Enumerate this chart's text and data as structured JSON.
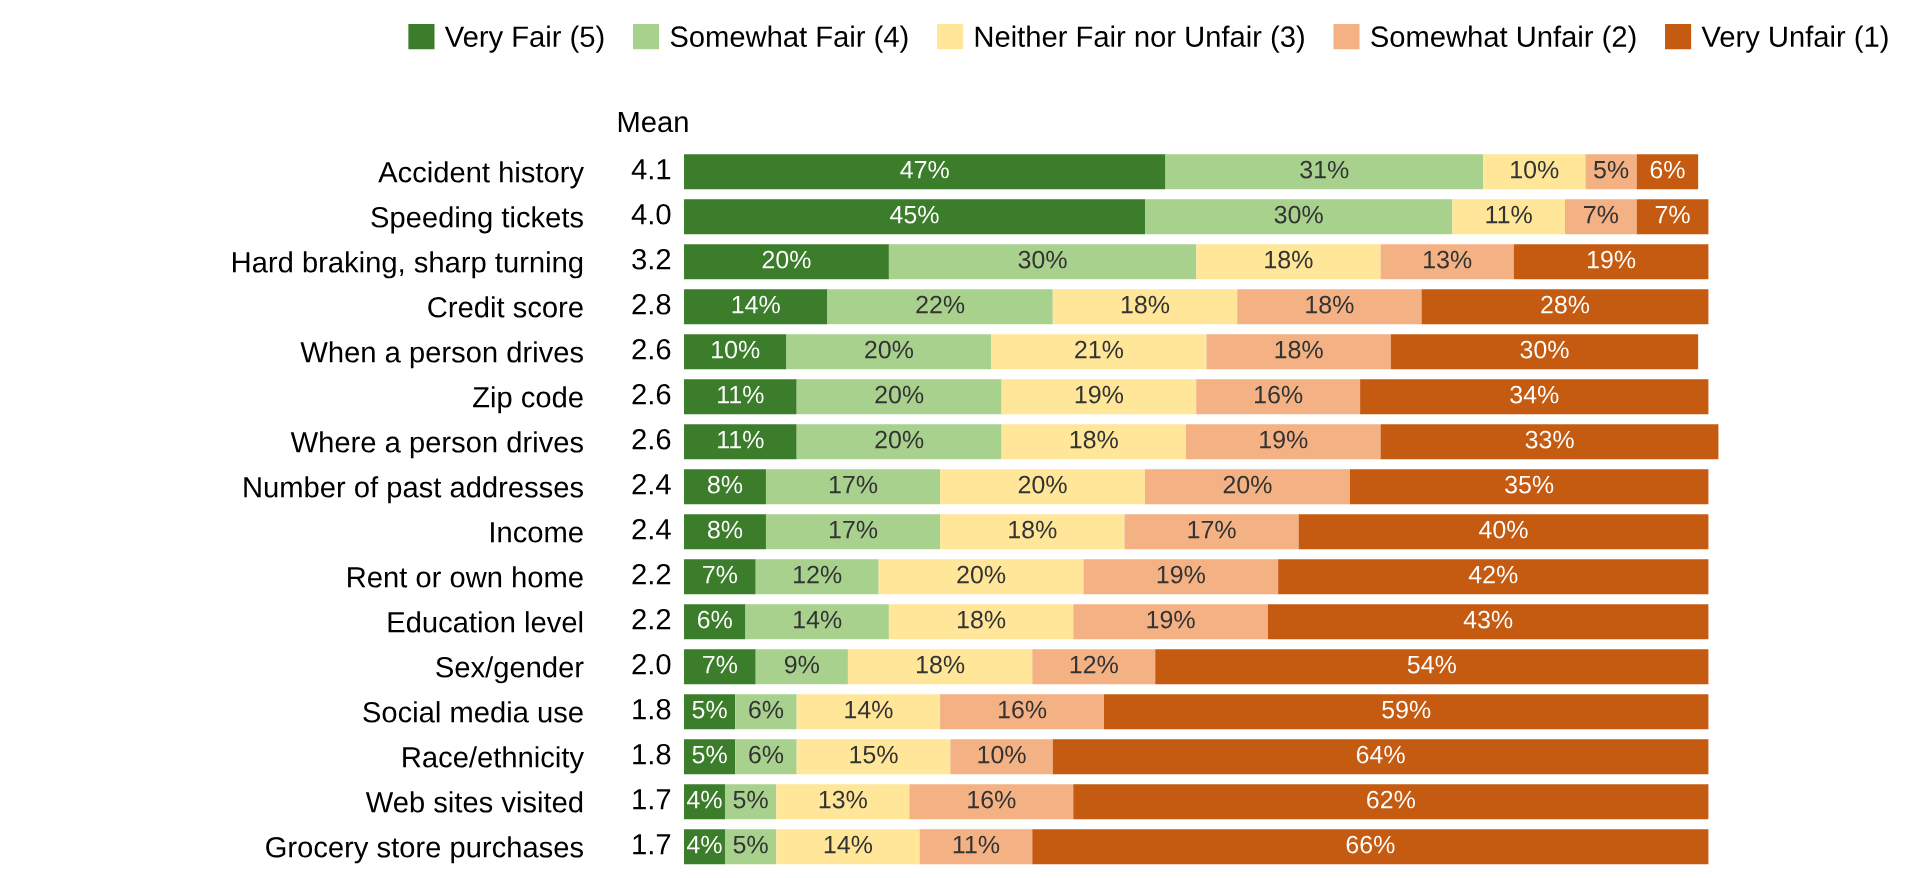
{
  "chart_data": {
    "type": "bar",
    "orientation": "horizontal",
    "stacked": true,
    "legend": "top",
    "categories": [
      "Accident history",
      "Speeding tickets",
      "Hard braking, sharp turning",
      "Credit score",
      "When a person drives",
      "Zip code",
      "Where a person drives",
      "Number of past addresses",
      "Income",
      "Rent or own home",
      "Education level",
      "Sex/gender",
      "Social media use",
      "Race/ethnicity",
      "Web sites visited",
      "Grocery store purchases"
    ],
    "y2label": "Mean",
    "y2_categories": [
      "4.1",
      "4.0",
      "3.2",
      "2.8",
      "2.6",
      "2.6",
      "2.6",
      "2.4",
      "2.4",
      "2.2",
      "2.2",
      "2.0",
      "1.8",
      "1.8",
      "1.7",
      "1.7"
    ],
    "series": [
      {
        "name": "Very Fair (5)",
        "color": "#3b7d2a",
        "values": [
          47,
          45,
          20,
          14,
          10,
          11,
          11,
          8,
          8,
          7,
          6,
          7,
          5,
          5,
          4,
          4
        ],
        "value_labels": [
          "47%",
          "45%",
          "20%",
          "14%",
          "10%",
          "11%",
          "11%",
          "8%",
          "8%",
          "7%",
          "6%",
          "7%",
          "5%",
          "5%",
          "4%",
          "4%"
        ]
      },
      {
        "name": "Somewhat Fair (4)",
        "color": "#a9d18e",
        "values": [
          31,
          30,
          30,
          22,
          20,
          20,
          20,
          17,
          17,
          12,
          14,
          9,
          6,
          6,
          5,
          5
        ],
        "value_labels": [
          "31%",
          "30%",
          "30%",
          "22%",
          "20%",
          "20%",
          "20%",
          "17%",
          "17%",
          "12%",
          "14%",
          "9%",
          "6%",
          "6%",
          "5%",
          "5%"
        ]
      },
      {
        "name": "Neither Fair nor Unfair (3)",
        "color": "#ffe699",
        "values": [
          10,
          11,
          18,
          18,
          21,
          19,
          18,
          20,
          18,
          20,
          18,
          18,
          14,
          15,
          13,
          14
        ],
        "value_labels": [
          "10%",
          "11%",
          "18%",
          "18%",
          "21%",
          "19%",
          "18%",
          "20%",
          "18%",
          "20%",
          "18%",
          "18%",
          "14%",
          "15%",
          "13%",
          "14%"
        ]
      },
      {
        "name": "Somewhat Unfair (2)",
        "color": "#f4b183",
        "values": [
          5,
          7,
          13,
          18,
          18,
          16,
          19,
          20,
          17,
          19,
          19,
          12,
          16,
          10,
          16,
          11
        ],
        "value_labels": [
          "5%",
          "7%",
          "13%",
          "18%",
          "18%",
          "16%",
          "19%",
          "20%",
          "17%",
          "19%",
          "19%",
          "12%",
          "16%",
          "10%",
          "16%",
          "11%"
        ]
      },
      {
        "name": "Very Unfair (1)",
        "color": "#c55a11",
        "values": [
          6,
          7,
          19,
          28,
          30,
          34,
          33,
          35,
          40,
          42,
          43,
          54,
          59,
          64,
          62,
          66
        ],
        "value_labels": [
          "6%",
          "7%",
          "19%",
          "28%",
          "30%",
          "34%",
          "33%",
          "35%",
          "40%",
          "42%",
          "43%",
          "54%",
          "59%",
          "64%",
          "62%",
          "66%"
        ]
      }
    ]
  }
}
